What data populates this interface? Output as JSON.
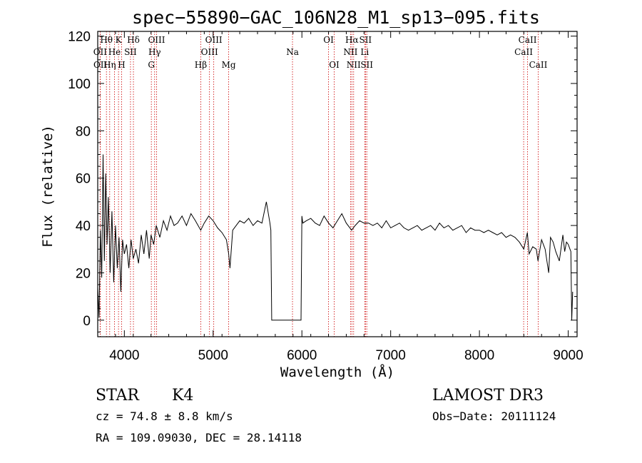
{
  "chart_data": {
    "type": "line",
    "title": "spec−55890−GAC_106N28_M1_sp13−095.fits",
    "xlabel": "Wavelength (Å)",
    "ylabel": "Flux (relative)",
    "xlim": [
      3700,
      9100
    ],
    "ylim": [
      -7,
      122
    ],
    "x_ticks": [
      4000,
      5000,
      6000,
      7000,
      8000,
      9000
    ],
    "y_ticks": [
      0,
      20,
      40,
      60,
      80,
      100,
      120
    ],
    "x_tick_labels": [
      "4000",
      "5000",
      "6000",
      "7000",
      "8000",
      "9000"
    ],
    "y_tick_labels": [
      "0",
      "20",
      "40",
      "60",
      "80",
      "100",
      "120"
    ],
    "series": [
      {
        "name": "flux",
        "x": [
          3700,
          3715,
          3730,
          3745,
          3760,
          3775,
          3790,
          3805,
          3820,
          3840,
          3860,
          3880,
          3900,
          3920,
          3940,
          3960,
          3980,
          4000,
          4025,
          4050,
          4075,
          4100,
          4130,
          4160,
          4190,
          4220,
          4250,
          4280,
          4300,
          4330,
          4360,
          4400,
          4440,
          4480,
          4520,
          4560,
          4600,
          4650,
          4700,
          4750,
          4800,
          4860,
          4900,
          4950,
          5000,
          5050,
          5100,
          5150,
          5175,
          5190,
          5220,
          5260,
          5300,
          5350,
          5400,
          5450,
          5500,
          5550,
          5600,
          5640,
          5650,
          5660,
          5700,
          5800,
          5900,
          5990,
          6000,
          6010,
          6050,
          6100,
          6150,
          6200,
          6250,
          6300,
          6350,
          6400,
          6450,
          6500,
          6560,
          6600,
          6650,
          6700,
          6750,
          6800,
          6850,
          6900,
          6950,
          7000,
          7050,
          7100,
          7150,
          7200,
          7250,
          7300,
          7350,
          7400,
          7450,
          7500,
          7550,
          7600,
          7650,
          7700,
          7750,
          7800,
          7850,
          7900,
          7950,
          8000,
          8050,
          8100,
          8150,
          8200,
          8250,
          8300,
          8350,
          8400,
          8450,
          8500,
          8540,
          8560,
          8600,
          8640,
          8660,
          8700,
          8740,
          8780,
          8800,
          8830,
          8860,
          8900,
          8940,
          8960,
          8980,
          9000,
          9020,
          9030,
          9040,
          9050
        ],
        "values": [
          14,
          1,
          38,
          18,
          70,
          25,
          62,
          32,
          52,
          20,
          46,
          16,
          40,
          22,
          35,
          12,
          34,
          28,
          32,
          22,
          34,
          26,
          30,
          24,
          36,
          28,
          38,
          26,
          36,
          32,
          40,
          35,
          42,
          38,
          44,
          40,
          41,
          44,
          40,
          45,
          42,
          38,
          41,
          44,
          42,
          39,
          37,
          34,
          28,
          22,
          38,
          40,
          42,
          41,
          43,
          40,
          42,
          41,
          50,
          41,
          38,
          0,
          0,
          0,
          0,
          0,
          44,
          41,
          42,
          43,
          41,
          40,
          44,
          41,
          39,
          42,
          45,
          41,
          38,
          40,
          42,
          41,
          41,
          40,
          41,
          39,
          42,
          39,
          40,
          41,
          39,
          38,
          39,
          40,
          38,
          39,
          40,
          38,
          41,
          39,
          40,
          38,
          39,
          40,
          37,
          39,
          38,
          38,
          37,
          38,
          37,
          36,
          37,
          35,
          36,
          35,
          33,
          30,
          37,
          28,
          31,
          30,
          25,
          34,
          30,
          20,
          35,
          33,
          29,
          25,
          36,
          29,
          33,
          32,
          30,
          29,
          0,
          12
        ]
      }
    ],
    "spectral_lines": [
      {
        "label": "Hθ",
        "wavelength": 3798,
        "row": 0
      },
      {
        "label": "OII",
        "wavelength": 3727,
        "row": 1
      },
      {
        "label": "OII",
        "wavelength": 3729,
        "row": 2
      },
      {
        "label": "He",
        "wavelength": 3889,
        "row": 1
      },
      {
        "label": "Hη",
        "wavelength": 3835,
        "row": 2
      },
      {
        "label": "K",
        "wavelength": 3934,
        "row": 0
      },
      {
        "label": "SII",
        "wavelength": 4069,
        "row": 1
      },
      {
        "label": "H",
        "wavelength": 3969,
        "row": 2
      },
      {
        "label": "Hδ",
        "wavelength": 4102,
        "row": 0
      },
      {
        "label": "OIII",
        "wavelength": 4363,
        "row": 0
      },
      {
        "label": "Hγ",
        "wavelength": 4341,
        "row": 1
      },
      {
        "label": "G",
        "wavelength": 4304,
        "row": 2
      },
      {
        "label": "OIII",
        "wavelength": 5007,
        "row": 0
      },
      {
        "label": "OIII",
        "wavelength": 4959,
        "row": 1
      },
      {
        "label": "Hβ",
        "wavelength": 4861,
        "row": 2
      },
      {
        "label": "Mg",
        "wavelength": 5175,
        "row": 2
      },
      {
        "label": "Na",
        "wavelength": 5894,
        "row": 1
      },
      {
        "label": "OI",
        "wavelength": 6300,
        "row": 0
      },
      {
        "label": "OI",
        "wavelength": 6364,
        "row": 2
      },
      {
        "label": "Hα",
        "wavelength": 6563,
        "row": 0
      },
      {
        "label": "SII",
        "wavelength": 6716,
        "row": 0
      },
      {
        "label": "NII",
        "wavelength": 6548,
        "row": 1
      },
      {
        "label": "Li",
        "wavelength": 6708,
        "row": 1
      },
      {
        "label": "NII",
        "wavelength": 6583,
        "row": 2
      },
      {
        "label": "SII",
        "wavelength": 6731,
        "row": 2
      },
      {
        "label": "CaII",
        "wavelength": 8542,
        "row": 0
      },
      {
        "label": "CaII",
        "wavelength": 8498,
        "row": 1
      },
      {
        "label": "CaII",
        "wavelength": 8662,
        "row": 2
      }
    ],
    "colors": {
      "axis": "#000000",
      "line": "#000000",
      "marker": "#cc0000"
    }
  },
  "info": {
    "class": "STAR",
    "subclass": "K4",
    "survey": "LAMOST DR3",
    "redshift": "cz = 74.8 ± 8.8 km/s",
    "obs_date": "Obs−Date: 20111124",
    "coords": "RA = 109.09030, DEC =  28.14118"
  }
}
